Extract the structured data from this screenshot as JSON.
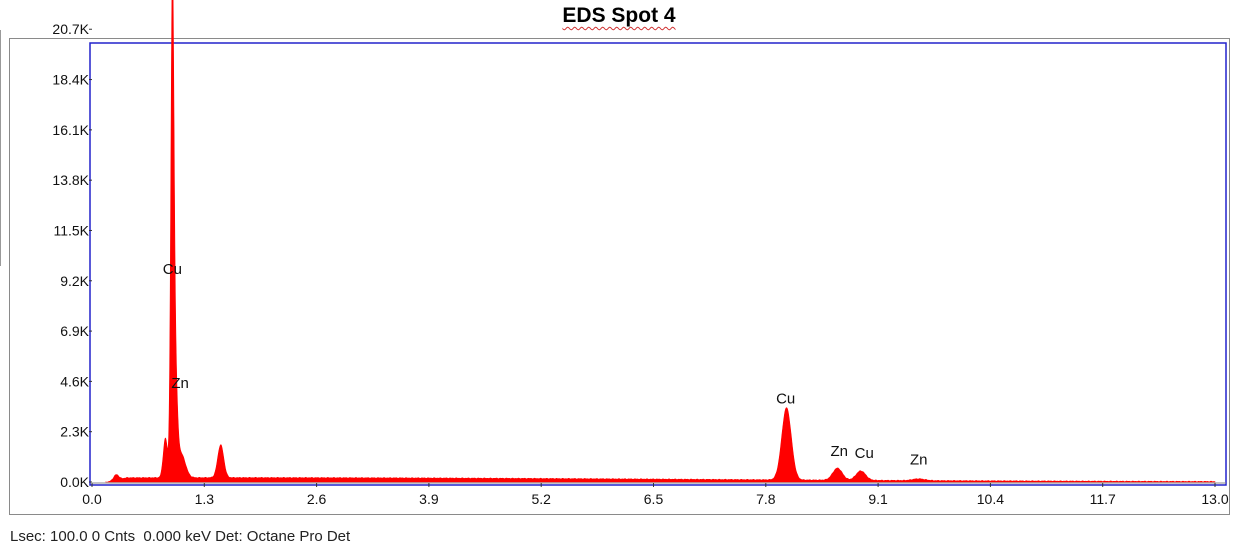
{
  "chart_data": {
    "type": "area",
    "title": "EDS Spot 4",
    "xlabel": "",
    "ylabel": "",
    "xlim": [
      0.0,
      13.0
    ],
    "ylim": [
      0,
      21900
    ],
    "x_ticks": [
      "0.0",
      "1.3",
      "2.6",
      "3.9",
      "5.2",
      "6.5",
      "7.8",
      "9.1",
      "10.4",
      "11.7",
      "13.0"
    ],
    "y_ticks": [
      "0.0K",
      "2.3K",
      "4.6K",
      "6.9K",
      "9.2K",
      "11.5K",
      "13.8K",
      "16.1K",
      "18.4K",
      "20.7K"
    ],
    "grid": false,
    "series": [
      {
        "color": "#ff0000",
        "background": 200,
        "peaks": [
          {
            "x": 0.28,
            "y": 250,
            "w": 0.03
          },
          {
            "x": 0.85,
            "y": 1800,
            "w": 0.025
          },
          {
            "x": 0.93,
            "y": 20700,
            "w": 0.018
          },
          {
            "x": 0.96,
            "y": 5000,
            "w": 0.025
          },
          {
            "x": 1.03,
            "y": 1100,
            "w": 0.05
          },
          {
            "x": 1.49,
            "y": 1500,
            "w": 0.035
          },
          {
            "x": 8.04,
            "y": 3300,
            "w": 0.055
          },
          {
            "x": 8.63,
            "y": 550,
            "w": 0.055
          },
          {
            "x": 8.9,
            "y": 430,
            "w": 0.055
          },
          {
            "x": 9.57,
            "y": 80,
            "w": 0.07
          }
        ]
      }
    ],
    "peak_labels": [
      {
        "text": "Cu",
        "x": 0.93,
        "y": 9500
      },
      {
        "text": "Zn",
        "x": 1.02,
        "y": 4300
      },
      {
        "text": "Cu",
        "x": 8.03,
        "y": 3600
      },
      {
        "text": "Zn",
        "x": 8.65,
        "y": 1200
      },
      {
        "text": "Cu",
        "x": 8.94,
        "y": 1100
      },
      {
        "text": "Zn",
        "x": 9.57,
        "y": 800
      }
    ]
  },
  "status_bar": "Lsec: 100.0 0 Cnts  0.000 keV Det: Octane Pro Det"
}
